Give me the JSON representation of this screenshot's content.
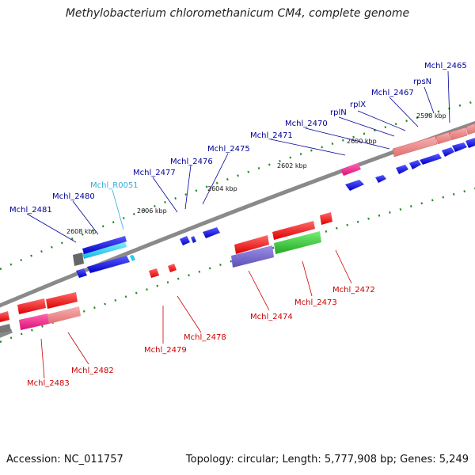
{
  "title": "Methylobacterium chloromethanicum CM4, complete genome",
  "footer": {
    "accession": "Accession: NC_011757",
    "summary": "Topology: circular; Length: 5,777,908 bp; Genes: 5,249"
  },
  "colors": {
    "backbone": "#8a8a8a",
    "tick": "#228b22",
    "blue_gene": "#1010e0",
    "red_gene": "#ee1111",
    "blue_label": "#000099",
    "red_label": "#cc0000",
    "rna_label": "#33aadd",
    "salmon": "#ee8080",
    "magenta": "#ee2288",
    "purple": "#7766cc",
    "green": "#33bb33",
    "cyan": "#22ccee",
    "gray": "#666666"
  },
  "kbp_labels": [
    "2598 kbp",
    "2600 kbp",
    "2602 kbp",
    "2604 kbp",
    "2606 kbp",
    "2608 kbp"
  ],
  "top_labels": [
    "Mchl_2465",
    "rpsN",
    "Mchl_2467",
    "rplX",
    "rplN",
    "Mchl_2470",
    "Mchl_2471",
    "Mchl_2475",
    "Mchl_2476",
    "Mchl_2477",
    "Mchl_R0051",
    "Mchl_2480",
    "Mchl_2481"
  ],
  "bottom_labels": [
    "Mchl_2472",
    "Mchl_2473",
    "Mchl_2474",
    "Mchl_2478",
    "Mchl_2479",
    "Mchl_2482",
    "Mchl_2483"
  ]
}
